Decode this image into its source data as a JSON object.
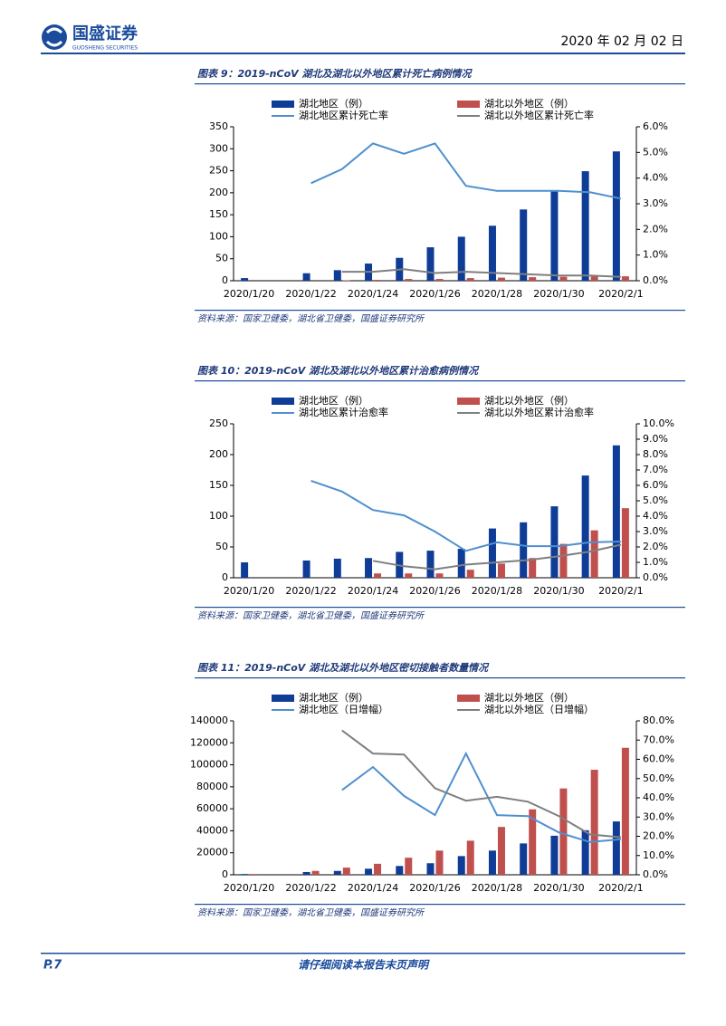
{
  "header": {
    "company": "国盛证券",
    "company_en": "GUOSHENG SECURITIES",
    "date": "2020 年 02 月 02 日"
  },
  "chart_data": [
    {
      "type": "bar",
      "title": "图表 9：2019-nCoV 湖北及湖北以外地区累计死亡病例情况",
      "source": "资料来源：国家卫健委，湖北省卫健委，国盛证券研究所",
      "categories": [
        "2020/1/20",
        null,
        "2020/1/22",
        null,
        "2020/1/24",
        null,
        "2020/1/26",
        null,
        "2020/1/28",
        null,
        "2020/1/30",
        null,
        "2020/2/1"
      ],
      "series": [
        {
          "name": "湖北地区（例）",
          "type": "bar",
          "axis": "y",
          "color": "#0f3c96",
          "values": [
            6,
            null,
            17,
            24,
            39,
            52,
            76,
            100,
            125,
            162,
            204,
            249,
            294
          ]
        },
        {
          "name": "湖北以外地区（例）",
          "type": "bar",
          "axis": "y",
          "color": "#c0504d",
          "values": [
            null,
            null,
            0,
            1,
            2,
            4,
            4,
            6,
            7,
            8,
            9,
            10,
            10
          ]
        },
        {
          "name": "湖北地区累计死亡率",
          "type": "line",
          "axis": "y2",
          "color": "#4f8fcf",
          "values": [
            null,
            null,
            3.8,
            4.35,
            5.35,
            4.95,
            5.35,
            3.7,
            3.5,
            3.5,
            3.5,
            3.45,
            3.2
          ]
        },
        {
          "name": "湖北以外地区累计死亡率",
          "type": "line",
          "axis": "y2",
          "color": "#7f7f7f",
          "values": [
            null,
            null,
            null,
            0.35,
            0.35,
            0.45,
            0.3,
            0.35,
            0.3,
            0.25,
            0.2,
            0.2,
            0.15
          ]
        }
      ],
      "ylim": [
        0,
        350
      ],
      "yticks": [
        0,
        50,
        100,
        150,
        200,
        250,
        300,
        350
      ],
      "y2lim": [
        0,
        6
      ],
      "y2ticks": [
        {
          "value": 0,
          "label": "0.0%"
        },
        {
          "value": 1,
          "label": "1.0%"
        },
        {
          "value": 2,
          "label": "2.0%"
        },
        {
          "value": 3,
          "label": "3.0%"
        },
        {
          "value": 4,
          "label": "4.0%"
        },
        {
          "value": 5,
          "label": "5.0%"
        },
        {
          "value": 6,
          "label": "6.0%"
        }
      ]
    },
    {
      "type": "bar",
      "title": "图表 10：2019-nCoV 湖北及湖北以外地区累计治愈病例情况",
      "source": "资料来源：国家卫健委，湖北省卫健委，国盛证券研究所",
      "categories": [
        "2020/1/20",
        null,
        "2020/1/22",
        null,
        "2020/1/24",
        null,
        "2020/1/26",
        null,
        "2020/1/28",
        null,
        "2020/1/30",
        null,
        "2020/2/1"
      ],
      "series": [
        {
          "name": "湖北地区（例）",
          "type": "bar",
          "axis": "y",
          "color": "#0f3c96",
          "values": [
            25,
            null,
            28,
            31,
            32,
            42,
            44,
            47,
            80,
            90,
            116,
            166,
            215
          ]
        },
        {
          "name": "湖北以外地区（例）",
          "type": "bar",
          "axis": "y",
          "color": "#c0504d",
          "values": [
            null,
            null,
            null,
            null,
            7,
            7,
            7,
            13,
            23,
            32,
            55,
            77,
            113
          ]
        },
        {
          "name": "湖北地区累计治愈率",
          "type": "line",
          "axis": "y2",
          "color": "#4f8fcf",
          "values": [
            null,
            null,
            6.3,
            5.6,
            4.4,
            4.05,
            3.0,
            1.75,
            2.3,
            2.05,
            2.05,
            2.3,
            2.35
          ]
        },
        {
          "name": "湖北以外地区累计治愈率",
          "type": "line",
          "axis": "y2",
          "color": "#7f7f7f",
          "values": [
            null,
            null,
            null,
            null,
            1.1,
            0.75,
            0.55,
            0.85,
            1.0,
            1.15,
            1.4,
            1.7,
            2.15
          ]
        }
      ],
      "ylim": [
        0,
        250
      ],
      "yticks": [
        0,
        50,
        100,
        150,
        200,
        250
      ],
      "y2lim": [
        0,
        10
      ],
      "y2ticks": [
        {
          "value": 0,
          "label": "0.0%"
        },
        {
          "value": 1,
          "label": "1.0%"
        },
        {
          "value": 2,
          "label": "2.0%"
        },
        {
          "value": 3,
          "label": "3.0%"
        },
        {
          "value": 4,
          "label": "4.0%"
        },
        {
          "value": 5,
          "label": "5.0%"
        },
        {
          "value": 6,
          "label": "6.0%"
        },
        {
          "value": 7,
          "label": "7.0%"
        },
        {
          "value": 8,
          "label": "8.0%"
        },
        {
          "value": 9,
          "label": "9.0%"
        },
        {
          "value": 10,
          "label": "10.0%"
        }
      ]
    },
    {
      "type": "bar",
      "title": "图表 11：2019-nCoV 湖北及湖北以外地区密切接触者数量情况",
      "source": "资料来源：国家卫健委，湖北省卫健委，国盛证券研究所",
      "categories": [
        "2020/1/20",
        null,
        "2020/1/22",
        null,
        "2020/1/24",
        null,
        "2020/1/26",
        null,
        "2020/1/28",
        null,
        "2020/1/30",
        null,
        "2020/2/1"
      ],
      "series": [
        {
          "name": "湖北地区（例）",
          "type": "bar",
          "axis": "y",
          "color": "#0f3c96",
          "values": [
            700,
            null,
            2500,
            3500,
            5500,
            8000,
            10500,
            17000,
            22000,
            28500,
            35500,
            40500,
            48500
          ]
        },
        {
          "name": "湖北以外地区（例）",
          "type": "bar",
          "axis": "y",
          "color": "#c0504d",
          "values": [
            700,
            null,
            3500,
            6500,
            10000,
            15500,
            22000,
            31000,
            43500,
            59500,
            78500,
            95500,
            115500
          ]
        },
        {
          "name": "湖北地区（日增幅）",
          "type": "line",
          "axis": "y2",
          "color": "#4f8fcf",
          "values": [
            null,
            null,
            null,
            44,
            56,
            41,
            31,
            63,
            31,
            30.5,
            22,
            17,
            18.5
          ]
        },
        {
          "name": "湖北以外地区（日增幅）",
          "type": "line",
          "axis": "y2",
          "color": "#7f7f7f",
          "values": [
            null,
            null,
            null,
            75,
            63,
            62.5,
            45,
            38.5,
            40.5,
            38,
            30.5,
            21,
            19.5
          ]
        }
      ],
      "ylim": [
        0,
        140000
      ],
      "yticks": [
        0,
        20000,
        40000,
        60000,
        80000,
        100000,
        120000,
        140000
      ],
      "y2lim": [
        0,
        80
      ],
      "y2ticks": [
        {
          "value": 0,
          "label": "0.0%"
        },
        {
          "value": 10,
          "label": "10.0%"
        },
        {
          "value": 20,
          "label": "20.0%"
        },
        {
          "value": 30,
          "label": "30.0%"
        },
        {
          "value": 40,
          "label": "40.0%"
        },
        {
          "value": 50,
          "label": "50.0%"
        },
        {
          "value": 60,
          "label": "60.0%"
        },
        {
          "value": 70,
          "label": "70.0%"
        },
        {
          "value": 80,
          "label": "80.0%"
        }
      ]
    }
  ],
  "footer": {
    "page": "P.7",
    "notice": "请仔细阅读本报告末页声明"
  }
}
